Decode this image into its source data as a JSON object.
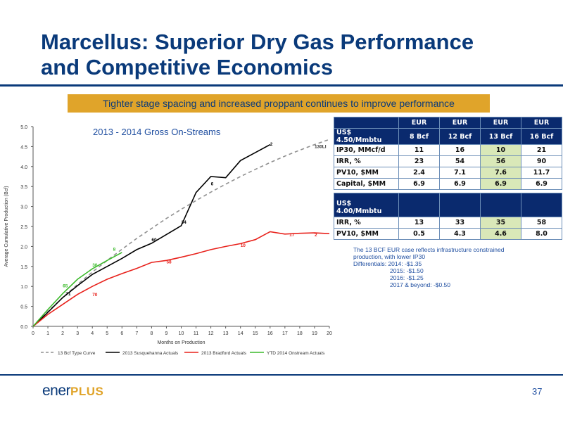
{
  "title_line1": "Marcellus:  Superior Dry Gas Performance",
  "title_line2": "and Competitive Economics",
  "banner": "Tighter stage spacing and increased proppant continues to improve performance",
  "chart_data": {
    "type": "line",
    "title": "2013 - 2014 Gross On-Streams",
    "xlabel": "Months on Production",
    "ylabel": "Average Cumulative Production (Bcf)",
    "xlim": [
      0,
      20
    ],
    "ylim": [
      0,
      5.0
    ],
    "xticks": [
      "0",
      "1",
      "2",
      "3",
      "4",
      "5",
      "6",
      "7",
      "8",
      "9",
      "10",
      "11",
      "12",
      "13",
      "14",
      "15",
      "16",
      "17",
      "18",
      "19",
      "20"
    ],
    "yticks": [
      "0.0",
      "0.5",
      "1.0",
      "1.5",
      "2.0",
      "2.5",
      "3.0",
      "3.5",
      "4.0",
      "4.5",
      "5.0"
    ],
    "grid": false,
    "legend_position": "bottom",
    "series": [
      {
        "name": "13 Bcf Type Curve",
        "color": "#909090",
        "dashed": true,
        "x": [
          0,
          1,
          2,
          3,
          4,
          5,
          6,
          7,
          8,
          9,
          10,
          11,
          12,
          13,
          14,
          15,
          16,
          17,
          18,
          19,
          20
        ],
        "y": [
          0,
          0.37,
          0.72,
          1.05,
          1.36,
          1.65,
          1.93,
          2.2,
          2.45,
          2.7,
          2.93,
          3.15,
          3.36,
          3.56,
          3.75,
          3.93,
          4.1,
          4.26,
          4.41,
          4.55,
          4.68
        ],
        "labels": [
          {
            "x": 19,
            "y": 4.41,
            "text": "130LI"
          }
        ]
      },
      {
        "name": "2013 Susquehanna Actuals",
        "color": "#000000",
        "dashed": false,
        "x": [
          0,
          1,
          2,
          3,
          4,
          5,
          6,
          7,
          8,
          9,
          10,
          11,
          12,
          13,
          14,
          15,
          16
        ],
        "y": [
          0,
          0.35,
          0.72,
          1.02,
          1.3,
          1.5,
          1.7,
          1.92,
          2.08,
          2.3,
          2.52,
          3.35,
          3.75,
          3.72,
          4.15,
          4.35,
          4.55
        ],
        "labels": [
          {
            "x": 2.2,
            "y": 0.72,
            "text": "71"
          },
          {
            "x": 8,
            "y": 2.08,
            "text": "60"
          },
          {
            "x": 10,
            "y": 2.52,
            "text": "34"
          },
          {
            "x": 12,
            "y": 3.48,
            "text": "6"
          },
          {
            "x": 16,
            "y": 4.47,
            "text": "2"
          }
        ]
      },
      {
        "name": "2013 Bradford Actuals",
        "color": "#e8221c",
        "dashed": false,
        "x": [
          0,
          1,
          2,
          3,
          4,
          5,
          6,
          7,
          8,
          9,
          10,
          11,
          12,
          13,
          14,
          15,
          16,
          17,
          18,
          19,
          20
        ],
        "y": [
          0,
          0.3,
          0.55,
          0.8,
          1.0,
          1.18,
          1.32,
          1.45,
          1.6,
          1.65,
          1.73,
          1.82,
          1.92,
          2.0,
          2.07,
          2.17,
          2.37,
          2.31,
          2.33,
          2.34,
          2.32
        ],
        "labels": [
          {
            "x": 4,
            "y": 0.7,
            "text": "70"
          },
          {
            "x": 9,
            "y": 1.52,
            "text": "58"
          },
          {
            "x": 14,
            "y": 1.94,
            "text": "10"
          },
          {
            "x": 17.3,
            "y": 2.2,
            "text": "17"
          },
          {
            "x": 19,
            "y": 2.2,
            "text": "2"
          }
        ]
      },
      {
        "name": "YTD 2014 Onstream Actuals",
        "color": "#3cba2c",
        "dashed": false,
        "x": [
          0,
          1,
          2,
          3,
          4,
          5,
          6
        ],
        "y": [
          0,
          0.42,
          0.82,
          1.18,
          1.44,
          1.65,
          1.85
        ],
        "labels": [
          {
            "x": 2,
            "y": 0.92,
            "text": "65"
          },
          {
            "x": 4,
            "y": 1.44,
            "text": "30"
          },
          {
            "x": 5.4,
            "y": 1.84,
            "text": "8"
          }
        ]
      }
    ]
  },
  "table1": {
    "header": [
      "",
      "EUR",
      "EUR",
      "EUR",
      "EUR"
    ],
    "rows": [
      [
        "US$ 4.50/Mmbtu",
        "8 Bcf",
        "12 Bcf",
        "13 Bcf",
        "16 Bcf"
      ],
      [
        "IP30, MMcf/d",
        "11",
        "16",
        "10",
        "21"
      ],
      [
        "IRR, %",
        "23",
        "54",
        "56",
        "90"
      ],
      [
        "PV10, $MM",
        "2.4",
        "7.1",
        "7.6",
        "11.7"
      ],
      [
        "Capital, $MM",
        "6.9",
        "6.9",
        "6.9",
        "6.9"
      ]
    ]
  },
  "table2": {
    "rows": [
      [
        "US$ 4.00/Mmbtu",
        "",
        "",
        "",
        ""
      ],
      [
        "IRR, %",
        "13",
        "33",
        "35",
        "58"
      ],
      [
        "PV10, $MM",
        "0.5",
        "4.3",
        "4.6",
        "8.0"
      ]
    ]
  },
  "note": {
    "line1": "The 13 BCF EUR case reflects infrastructure constrained",
    "line2": "production, with lower IP30",
    "line3": "Differentials: 2014: -$1.35",
    "line4": "2015: -$1.50",
    "line5": "2016: -$1.25",
    "line6": "2017 & beyond: -$0.50"
  },
  "logo": {
    "part1": "ener",
    "part2": "PLUS"
  },
  "page_number": "37"
}
